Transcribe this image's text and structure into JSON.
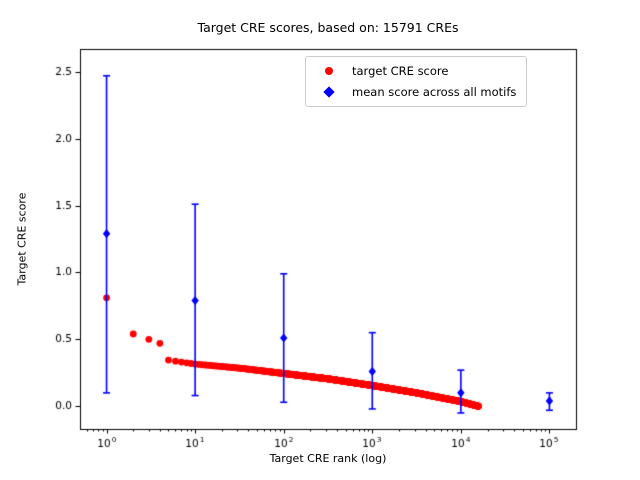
{
  "chart_data": {
    "type": "scatter",
    "title": "Target CRE scores, based on: 15791 CREs",
    "xlabel": "Target CRE rank (log)",
    "ylabel": "Target CRE score",
    "x_scale": "log",
    "grid": false,
    "legend_position": "upper right",
    "xlim_log10": [
      -0.3,
      5.3
    ],
    "ylim": [
      -0.17,
      2.67
    ],
    "x_tick_exponents": [
      0,
      1,
      2,
      3,
      4,
      5
    ],
    "y_ticks": [
      0.0,
      0.5,
      1.0,
      1.5,
      2.0,
      2.5
    ],
    "series": [
      {
        "name": "target CRE score",
        "marker": "circle",
        "color": "#ff0000",
        "head_points": [
          [
            1,
            0.81
          ],
          [
            2,
            0.54
          ],
          [
            3,
            0.5
          ],
          [
            4,
            0.47
          ]
        ],
        "band": {
          "rank_range": [
            5,
            15791
          ],
          "anchors_log10rank_score": [
            [
              0.699,
              0.345
            ],
            [
              1.0,
              0.315
            ],
            [
              1.5,
              0.285
            ],
            [
              2.0,
              0.245
            ],
            [
              2.5,
              0.205
            ],
            [
              3.0,
              0.155
            ],
            [
              3.5,
              0.1
            ],
            [
              4.0,
              0.035
            ],
            [
              4.199,
              0.0
            ]
          ]
        }
      },
      {
        "name": "mean score across all motifs",
        "marker": "diamond",
        "color": "#0000ff",
        "points_with_error": [
          {
            "x": 1,
            "y": 1.29,
            "lo": 0.1,
            "hi": 2.47
          },
          {
            "x": 10,
            "y": 0.79,
            "lo": 0.08,
            "hi": 1.51
          },
          {
            "x": 100,
            "y": 0.51,
            "lo": 0.03,
            "hi": 0.99
          },
          {
            "x": 1000,
            "y": 0.26,
            "lo": -0.02,
            "hi": 0.55
          },
          {
            "x": 10000,
            "y": 0.1,
            "lo": -0.05,
            "hi": 0.27
          },
          {
            "x": 100000,
            "y": 0.04,
            "lo": -0.03,
            "hi": 0.1
          }
        ]
      }
    ]
  }
}
